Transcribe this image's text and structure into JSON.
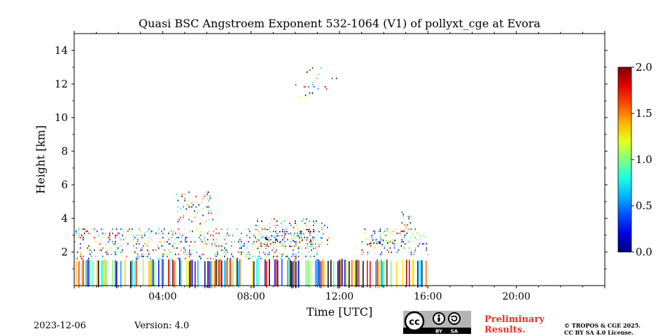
{
  "chart_data": {
    "type": "heatmap",
    "title": "Quasi BSC Angstroem Exponent 532-1064 (V1) of pollyxt_cge at Evora",
    "xlabel": "Time [UTC]",
    "ylabel": "Height [km]",
    "x_tick_labels": [
      "04:00",
      "08:00",
      "12:00",
      "16:00",
      "20:00"
    ],
    "x_tick_hours": [
      4,
      8,
      12,
      16,
      20
    ],
    "xlim_hours": [
      0,
      24
    ],
    "y_tick_labels": [
      "2",
      "4",
      "6",
      "8",
      "10",
      "12",
      "14"
    ],
    "y_tick_values": [
      2,
      4,
      6,
      8,
      10,
      12,
      14
    ],
    "ylim": [
      0,
      15
    ],
    "colorbar": {
      "ticks": [
        "0.0",
        "0.5",
        "1.0",
        "1.5",
        "2.0"
      ],
      "tick_values": [
        0,
        0.5,
        1.0,
        1.5,
        2.0
      ],
      "range": [
        0,
        2.0
      ],
      "colormap": "jet"
    },
    "data_regions": [
      {
        "t_start": 0.0,
        "t_end": 16.0,
        "h_min": 0.0,
        "h_max": 1.6,
        "density": 0.55,
        "kind": "columns"
      },
      {
        "t_start": 0.0,
        "t_end": 11.0,
        "h_min": 1.6,
        "h_max": 3.4,
        "density": 0.35,
        "kind": "speckle"
      },
      {
        "t_start": 4.6,
        "t_end": 6.3,
        "h_min": 3.6,
        "h_max": 5.6,
        "density": 0.25,
        "kind": "speckle"
      },
      {
        "t_start": 8.2,
        "t_end": 11.5,
        "h_min": 2.2,
        "h_max": 4.0,
        "density": 0.3,
        "kind": "speckle"
      },
      {
        "t_start": 10.0,
        "t_end": 12.0,
        "h_min": 11.0,
        "h_max": 13.0,
        "density": 0.08,
        "kind": "speckle"
      },
      {
        "t_start": 13.0,
        "t_end": 16.0,
        "h_min": 1.8,
        "h_max": 3.4,
        "density": 0.3,
        "kind": "speckle"
      },
      {
        "t_start": 14.8,
        "t_end": 15.2,
        "h_min": 2.0,
        "h_max": 4.4,
        "density": 0.4,
        "kind": "speckle"
      },
      {
        "t_start": 13.2,
        "t_end": 14.6,
        "h_min": 2.4,
        "h_max": 2.8,
        "density": 0.6,
        "kind": "layer"
      },
      {
        "t_start": 8.6,
        "t_end": 10.2,
        "h_min": 2.6,
        "h_max": 2.9,
        "density": 0.5,
        "kind": "layer"
      }
    ]
  },
  "footer": {
    "date": "2023-12-06",
    "version": "Version: 4.0",
    "preliminary_line1": "Preliminary",
    "preliminary_line2": "Results.",
    "copyright_line1": "© TROPOS & CGE 2025.",
    "copyright_line2": "CC BY SA 4.0 License.",
    "license_badge_text": "cc",
    "license_by": "BY",
    "license_sa": "SA"
  },
  "colors": {
    "preliminary": "#e8322c",
    "badge_bg": "#b4b4b4",
    "badge_bar": "#000000"
  }
}
